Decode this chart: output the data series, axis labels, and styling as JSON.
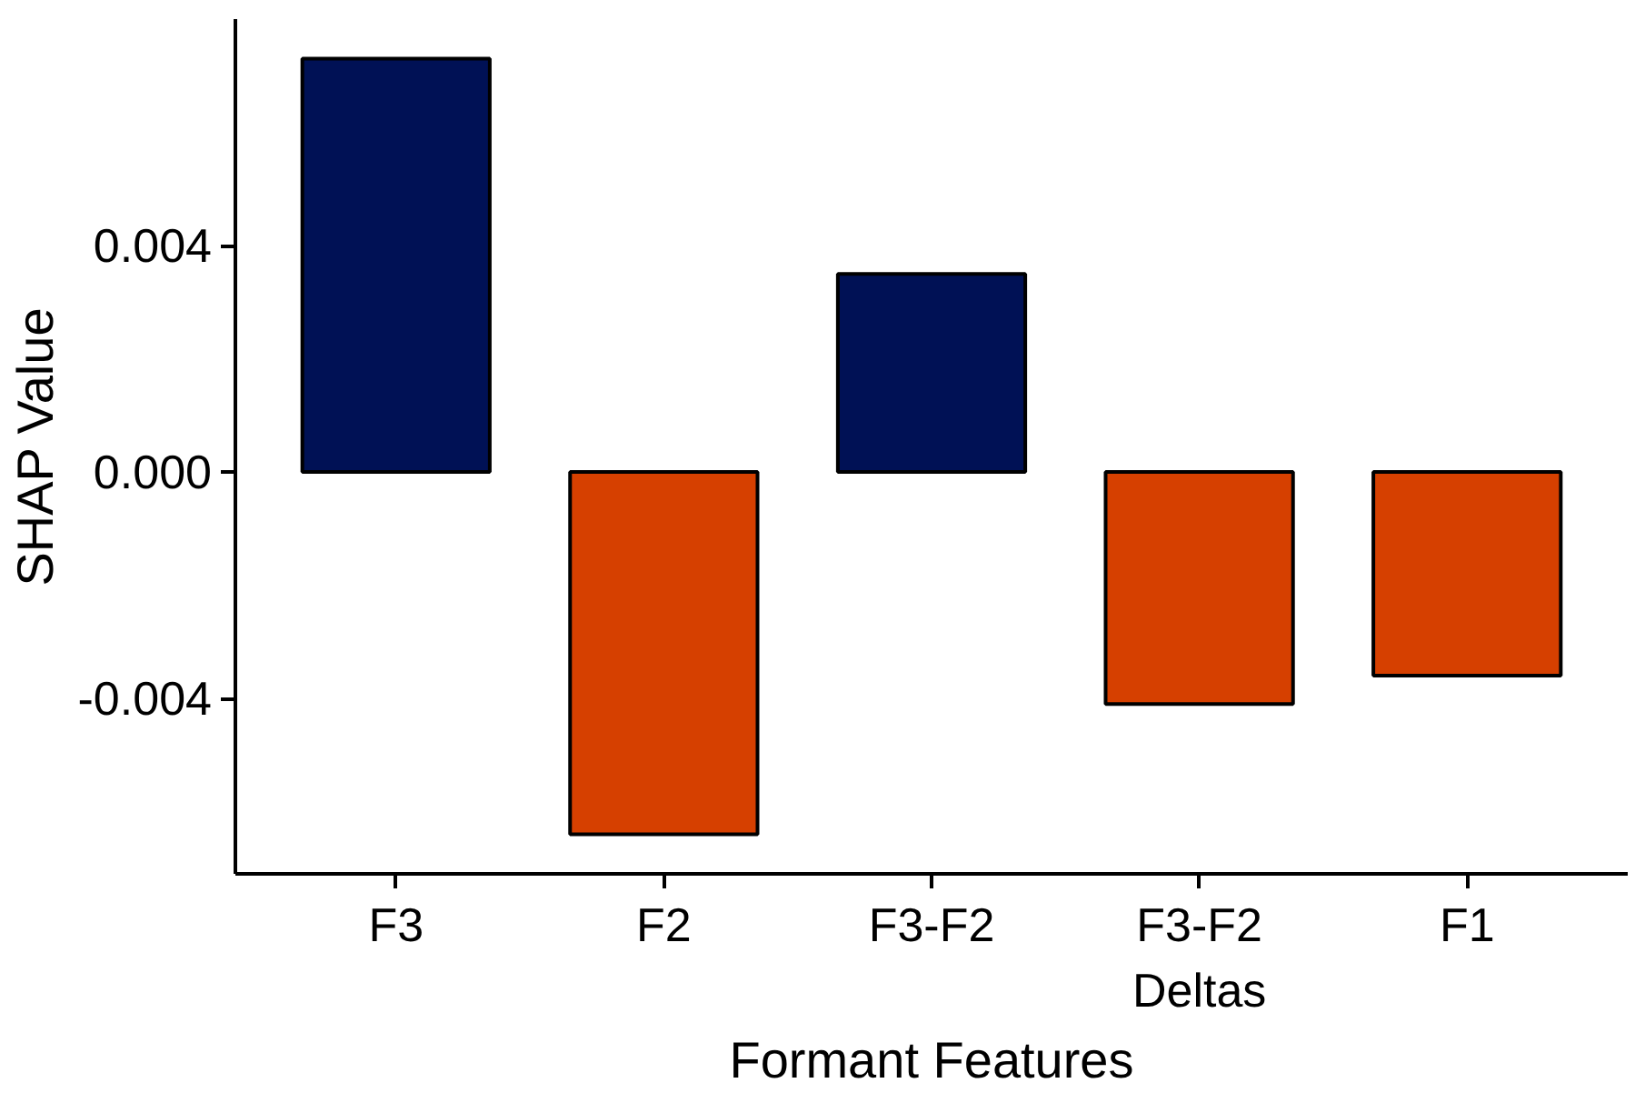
{
  "chart_data": {
    "type": "bar",
    "xlabel": "Formant Features",
    "ylabel": "SHAP Value",
    "categories": [
      "F3",
      "F2",
      "F3-F2",
      "F3-F2\nDeltas",
      "F1"
    ],
    "values": [
      0.0073,
      -0.0064,
      0.0035,
      -0.0041,
      -0.0036
    ],
    "colors": [
      "#001155",
      "#d64000",
      "#001155",
      "#d64000",
      "#d64000"
    ],
    "ylim": [
      -0.0071,
      0.008
    ],
    "yticks": [
      {
        "value": -0.004,
        "label": "-0.004"
      },
      {
        "value": 0,
        "label": "0.000"
      },
      {
        "value": 0.004,
        "label": "0.004"
      }
    ],
    "grid": false
  }
}
